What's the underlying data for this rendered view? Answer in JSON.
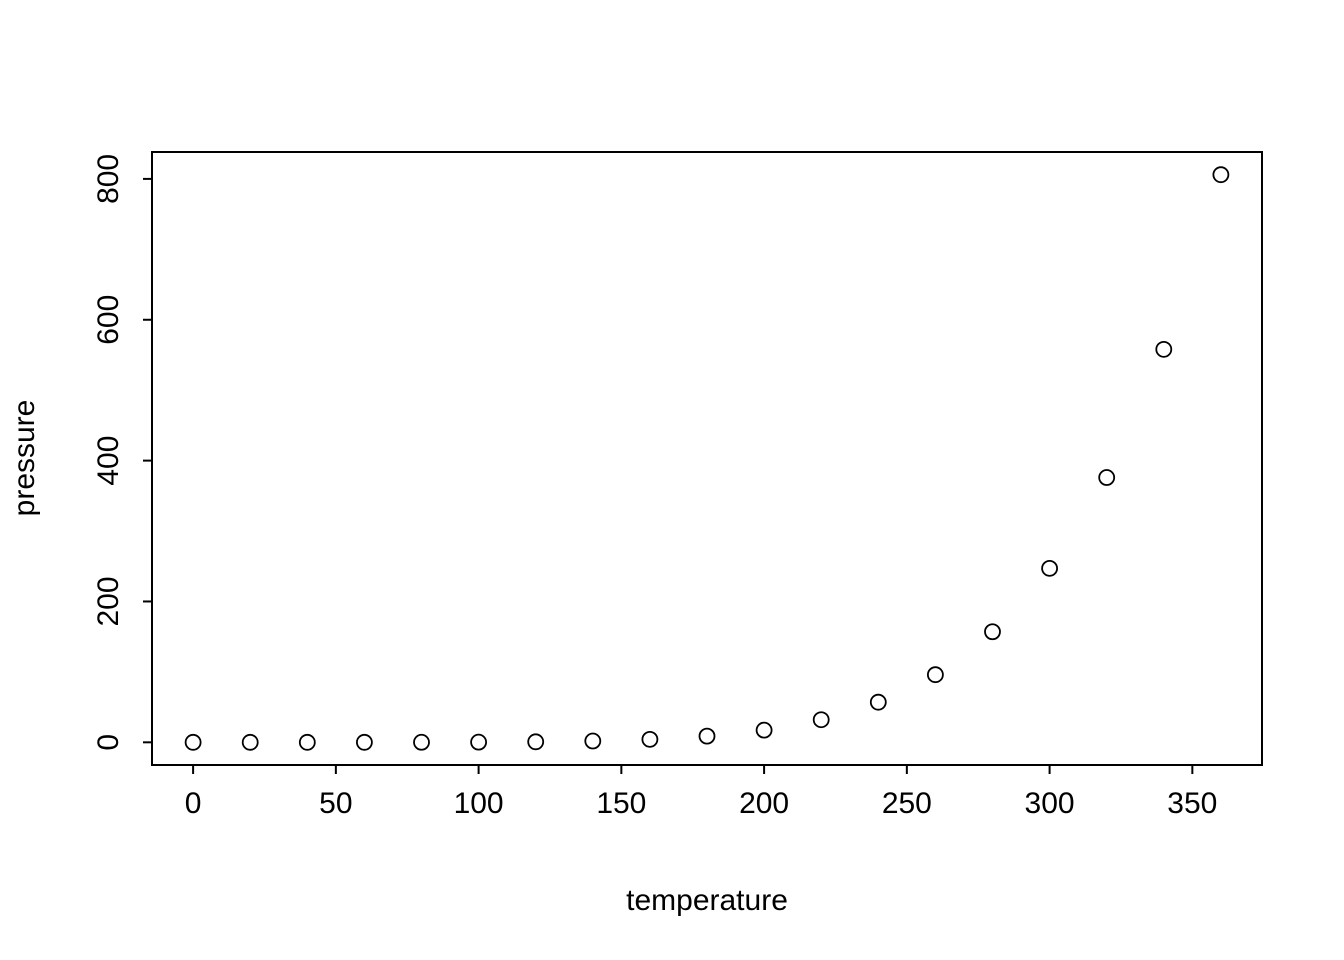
{
  "chart_data": {
    "type": "scatter",
    "title": "",
    "xlabel": "temperature",
    "ylabel": "pressure",
    "x": [
      0,
      20,
      40,
      60,
      80,
      100,
      120,
      140,
      160,
      180,
      200,
      220,
      240,
      260,
      280,
      300,
      320,
      340,
      360
    ],
    "y": [
      0.0002,
      0.0012,
      0.006,
      0.03,
      0.09,
      0.27,
      0.75,
      1.85,
      4.2,
      8.8,
      17.3,
      32.1,
      57.0,
      96.0,
      157.0,
      247.0,
      376.0,
      558.0,
      806.0
    ],
    "xticks": [
      0,
      50,
      100,
      150,
      200,
      250,
      300,
      350
    ],
    "yticks": [
      0,
      200,
      400,
      600,
      800
    ],
    "xlim": [
      -14.4,
      374.4
    ],
    "ylim": [
      -32.2,
      838.2
    ],
    "grid": false,
    "legend_position": "none",
    "marker": "open-circle",
    "colors": {
      "point_stroke": "#000000",
      "axis": "#000000",
      "background": "#ffffff"
    }
  }
}
